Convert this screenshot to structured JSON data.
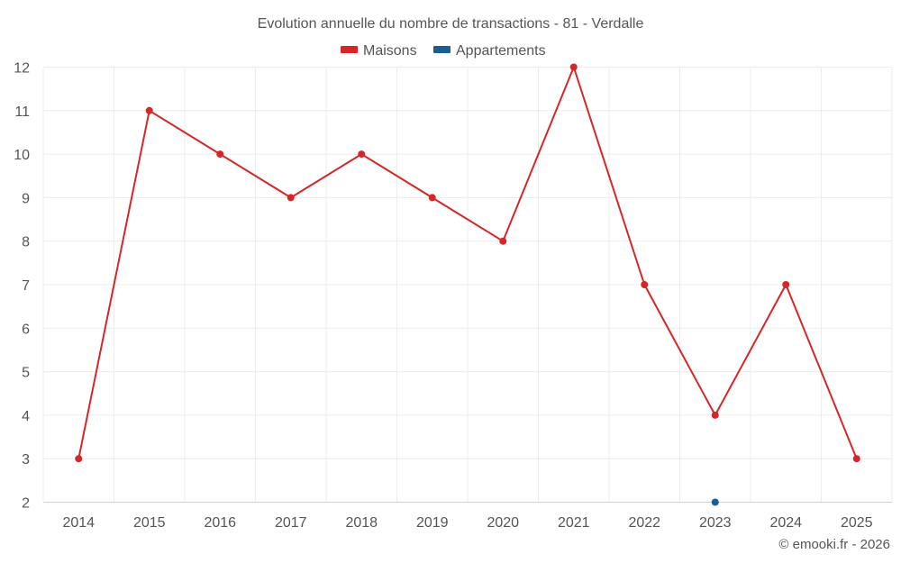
{
  "chart_data": {
    "type": "line",
    "title": "Evolution annuelle du nombre de transactions - 81 - Verdalle",
    "categories": [
      "2014",
      "2015",
      "2016",
      "2017",
      "2018",
      "2019",
      "2020",
      "2021",
      "2022",
      "2023",
      "2024",
      "2025"
    ],
    "ylim": [
      2,
      12
    ],
    "yticks": [
      2,
      3,
      4,
      5,
      6,
      7,
      8,
      9,
      10,
      11,
      12
    ],
    "grid": true,
    "legend_position": "top-center",
    "series": [
      {
        "name": "Maisons",
        "color": "#d62728",
        "values": [
          3,
          11,
          10,
          9,
          10,
          9,
          8,
          12,
          7,
          4,
          7,
          3
        ]
      },
      {
        "name": "Appartements",
        "color": "#1a5e92",
        "values": [
          null,
          null,
          null,
          null,
          null,
          null,
          null,
          null,
          null,
          2,
          null,
          null
        ]
      }
    ],
    "credit": "© emooki.fr - 2026"
  }
}
